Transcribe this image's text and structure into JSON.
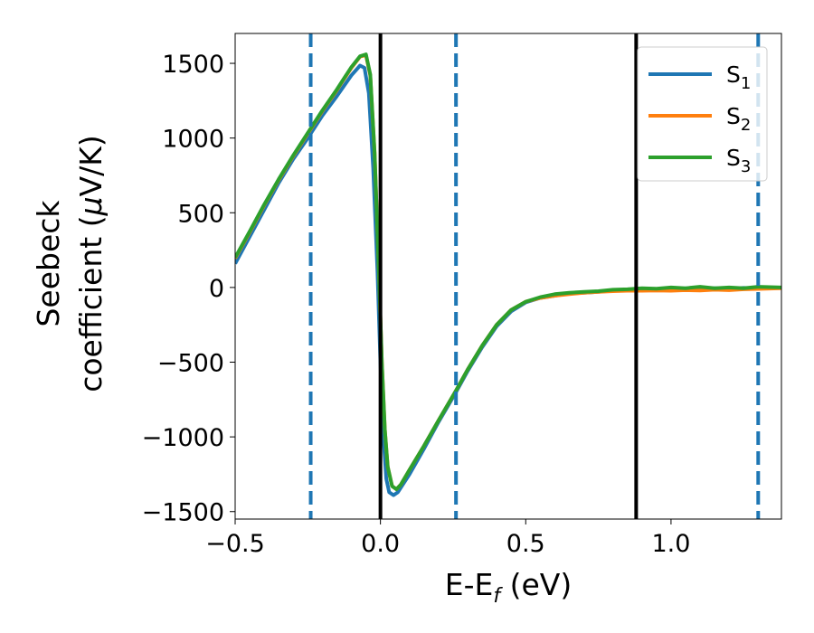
{
  "chart_data": {
    "type": "line",
    "xlabel": {
      "main": "E-E",
      "sub": "f",
      "unit": " (eV)"
    },
    "ylabel": {
      "line1": "Seebeck",
      "line2_pre": "coefficient  (",
      "mu": "μ",
      "line2_post": "V/K)"
    },
    "xlim": [
      -0.5,
      1.38
    ],
    "ylim": [
      -1550,
      1700
    ],
    "x_ticks": [
      {
        "value": -0.5,
        "label": "−0.5"
      },
      {
        "value": 0.0,
        "label": "0.0"
      },
      {
        "value": 0.5,
        "label": "0.5"
      },
      {
        "value": 1.0,
        "label": "1.0"
      }
    ],
    "y_ticks": [
      {
        "value": 1500,
        "label": "1500"
      },
      {
        "value": 1000,
        "label": "1000"
      },
      {
        "value": 500,
        "label": "500"
      },
      {
        "value": 0,
        "label": "0"
      },
      {
        "value": -500,
        "label": "−500"
      },
      {
        "value": -1000,
        "label": "−1000"
      },
      {
        "value": -1500,
        "label": "−1500"
      }
    ],
    "vlines_solid": [
      0.0,
      0.88
    ],
    "vlines_dashed": [
      -0.24,
      0.26,
      1.3
    ],
    "grid": false,
    "legend": "top-right",
    "series": [
      {
        "name": "S",
        "sub": "1",
        "color": "#1f77b4",
        "points": [
          [
            -0.5,
            160
          ],
          [
            -0.45,
            340
          ],
          [
            -0.4,
            520
          ],
          [
            -0.35,
            700
          ],
          [
            -0.3,
            860
          ],
          [
            -0.25,
            1000
          ],
          [
            -0.2,
            1150
          ],
          [
            -0.15,
            1280
          ],
          [
            -0.1,
            1420
          ],
          [
            -0.07,
            1485
          ],
          [
            -0.055,
            1470
          ],
          [
            -0.04,
            1300
          ],
          [
            -0.025,
            800
          ],
          [
            -0.01,
            100
          ],
          [
            0.0,
            -500
          ],
          [
            0.01,
            -1000
          ],
          [
            0.02,
            -1280
          ],
          [
            0.03,
            -1370
          ],
          [
            0.045,
            -1390
          ],
          [
            0.06,
            -1370
          ],
          [
            0.1,
            -1250
          ],
          [
            0.15,
            -1080
          ],
          [
            0.2,
            -900
          ],
          [
            0.26,
            -700
          ],
          [
            0.3,
            -560
          ],
          [
            0.35,
            -400
          ],
          [
            0.4,
            -260
          ],
          [
            0.45,
            -160
          ],
          [
            0.5,
            -100
          ],
          [
            0.55,
            -70
          ],
          [
            0.6,
            -55
          ],
          [
            0.65,
            -40
          ],
          [
            0.7,
            -35
          ],
          [
            0.75,
            -30
          ],
          [
            0.8,
            -20
          ],
          [
            0.85,
            -20
          ],
          [
            0.9,
            -15
          ],
          [
            0.95,
            -10
          ],
          [
            1.0,
            -12
          ],
          [
            1.05,
            -6
          ],
          [
            1.1,
            -10
          ],
          [
            1.15,
            -5
          ],
          [
            1.2,
            -8
          ],
          [
            1.25,
            -3
          ],
          [
            1.3,
            -5
          ],
          [
            1.38,
            -3
          ]
        ]
      },
      {
        "name": "S",
        "sub": "2",
        "color": "#ff7f0e",
        "points": [
          [
            -0.5,
            195
          ],
          [
            -0.45,
            370
          ],
          [
            -0.4,
            550
          ],
          [
            -0.35,
            720
          ],
          [
            -0.3,
            880
          ],
          [
            -0.25,
            1030
          ],
          [
            -0.2,
            1180
          ],
          [
            -0.15,
            1320
          ],
          [
            -0.1,
            1470
          ],
          [
            -0.07,
            1545
          ],
          [
            -0.05,
            1555
          ],
          [
            -0.035,
            1420
          ],
          [
            -0.02,
            900
          ],
          [
            -0.005,
            100
          ],
          [
            0.005,
            -500
          ],
          [
            0.015,
            -950
          ],
          [
            0.025,
            -1200
          ],
          [
            0.04,
            -1330
          ],
          [
            0.055,
            -1350
          ],
          [
            0.07,
            -1320
          ],
          [
            0.1,
            -1220
          ],
          [
            0.15,
            -1060
          ],
          [
            0.2,
            -890
          ],
          [
            0.26,
            -690
          ],
          [
            0.3,
            -550
          ],
          [
            0.35,
            -390
          ],
          [
            0.4,
            -250
          ],
          [
            0.45,
            -150
          ],
          [
            0.5,
            -95
          ],
          [
            0.55,
            -70
          ],
          [
            0.6,
            -55
          ],
          [
            0.65,
            -45
          ],
          [
            0.7,
            -35
          ],
          [
            0.75,
            -30
          ],
          [
            0.8,
            -25
          ],
          [
            0.85,
            -22
          ],
          [
            0.9,
            -22
          ],
          [
            0.95,
            -20
          ],
          [
            1.0,
            -22
          ],
          [
            1.05,
            -18
          ],
          [
            1.1,
            -20
          ],
          [
            1.15,
            -15
          ],
          [
            1.2,
            -18
          ],
          [
            1.25,
            -12
          ],
          [
            1.3,
            -10
          ],
          [
            1.38,
            -5
          ]
        ]
      },
      {
        "name": "S",
        "sub": "3",
        "color": "#2ca02c",
        "points": [
          [
            -0.5,
            200
          ],
          [
            -0.45,
            375
          ],
          [
            -0.4,
            555
          ],
          [
            -0.35,
            725
          ],
          [
            -0.3,
            885
          ],
          [
            -0.25,
            1035
          ],
          [
            -0.2,
            1185
          ],
          [
            -0.15,
            1325
          ],
          [
            -0.1,
            1475
          ],
          [
            -0.07,
            1548
          ],
          [
            -0.05,
            1560
          ],
          [
            -0.035,
            1425
          ],
          [
            -0.02,
            900
          ],
          [
            -0.005,
            100
          ],
          [
            0.005,
            -500
          ],
          [
            0.015,
            -950
          ],
          [
            0.025,
            -1200
          ],
          [
            0.04,
            -1330
          ],
          [
            0.055,
            -1350
          ],
          [
            0.07,
            -1320
          ],
          [
            0.1,
            -1220
          ],
          [
            0.15,
            -1060
          ],
          [
            0.2,
            -890
          ],
          [
            0.26,
            -690
          ],
          [
            0.3,
            -550
          ],
          [
            0.35,
            -390
          ],
          [
            0.4,
            -250
          ],
          [
            0.45,
            -150
          ],
          [
            0.5,
            -95
          ],
          [
            0.55,
            -65
          ],
          [
            0.6,
            -45
          ],
          [
            0.65,
            -35
          ],
          [
            0.7,
            -30
          ],
          [
            0.75,
            -25
          ],
          [
            0.8,
            -15
          ],
          [
            0.85,
            -12
          ],
          [
            0.9,
            -5
          ],
          [
            0.95,
            -8
          ],
          [
            1.0,
            0
          ],
          [
            1.05,
            -5
          ],
          [
            1.1,
            5
          ],
          [
            1.15,
            -5
          ],
          [
            1.2,
            0
          ],
          [
            1.25,
            -5
          ],
          [
            1.3,
            5
          ],
          [
            1.38,
            0
          ]
        ]
      }
    ]
  }
}
